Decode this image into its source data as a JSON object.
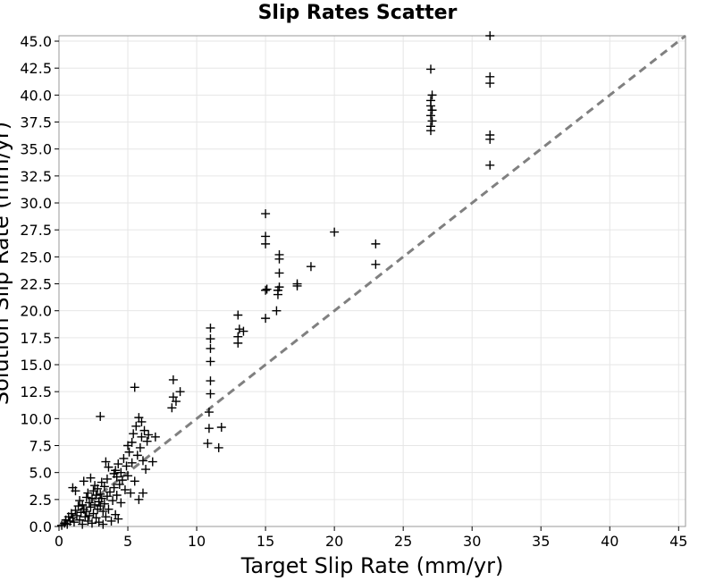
{
  "chart_data": {
    "type": "scatter",
    "title": "Slip Rates Scatter",
    "xlabel": "Target Slip Rate (mm/yr)",
    "ylabel": "Solution Slip Rate (mm/yr)",
    "xlim": [
      0,
      45.5
    ],
    "ylim": [
      0,
      45.5
    ],
    "x_ticks": [
      "0",
      "5",
      "10",
      "15",
      "20",
      "25",
      "30",
      "35",
      "40",
      "45"
    ],
    "y_ticks": [
      "0.0",
      "2.5",
      "5.0",
      "7.5",
      "10.0",
      "12.5",
      "15.0",
      "17.5",
      "20.0",
      "22.5",
      "25.0",
      "27.5",
      "30.0",
      "32.5",
      "35.0",
      "37.5",
      "40.0",
      "42.5",
      "45.0"
    ],
    "grid": true,
    "marker": "plus",
    "reference_line": {
      "style": "dashed",
      "color": "#808080",
      "x": [
        0,
        45.5
      ],
      "y": [
        0,
        45.5
      ]
    },
    "points": [
      [
        0.2,
        0.1
      ],
      [
        0.4,
        0.3
      ],
      [
        0.5,
        0.6
      ],
      [
        0.6,
        0.2
      ],
      [
        0.7,
        0.9
      ],
      [
        0.8,
        0.5
      ],
      [
        0.9,
        1.2
      ],
      [
        1.0,
        0.8
      ],
      [
        1.0,
        3.6
      ],
      [
        1.1,
        0.4
      ],
      [
        1.2,
        1.5
      ],
      [
        1.2,
        3.3
      ],
      [
        1.3,
        1.0
      ],
      [
        1.4,
        1.9
      ],
      [
        1.5,
        0.6
      ],
      [
        1.5,
        2.4
      ],
      [
        1.6,
        1.3
      ],
      [
        1.7,
        0.2
      ],
      [
        1.7,
        2.0
      ],
      [
        1.8,
        1.6
      ],
      [
        1.8,
        4.2
      ],
      [
        1.9,
        0.9
      ],
      [
        2.0,
        2.7
      ],
      [
        2.0,
        1.4
      ],
      [
        2.1,
        0.5
      ],
      [
        2.1,
        3.1
      ],
      [
        2.2,
        2.2
      ],
      [
        2.2,
        1.0
      ],
      [
        2.3,
        4.5
      ],
      [
        2.3,
        1.8
      ],
      [
        2.4,
        2.6
      ],
      [
        2.4,
        0.3
      ],
      [
        2.5,
        3.3
      ],
      [
        2.5,
        1.2
      ],
      [
        2.6,
        2.0
      ],
      [
        2.6,
        3.8
      ],
      [
        2.7,
        0.8
      ],
      [
        2.7,
        2.9
      ],
      [
        2.8,
        1.6
      ],
      [
        2.8,
        3.5
      ],
      [
        2.9,
        2.3
      ],
      [
        2.9,
        0.4
      ],
      [
        3.0,
        3.0
      ],
      [
        3.0,
        1.9
      ],
      [
        3.0,
        10.2
      ],
      [
        3.1,
        2.6
      ],
      [
        3.1,
        4.1
      ],
      [
        3.2,
        1.4
      ],
      [
        3.2,
        0.2
      ],
      [
        3.3,
        3.7
      ],
      [
        3.3,
        2.1
      ],
      [
        3.4,
        0.9
      ],
      [
        3.4,
        6.0
      ],
      [
        3.5,
        2.8
      ],
      [
        3.5,
        4.4
      ],
      [
        3.6,
        1.6
      ],
      [
        3.6,
        5.5
      ],
      [
        3.7,
        3.2
      ],
      [
        3.8,
        0.5
      ],
      [
        3.9,
        2.4
      ],
      [
        4.0,
        4.9
      ],
      [
        4.0,
        3.6
      ],
      [
        4.1,
        1.1
      ],
      [
        4.1,
        5.2
      ],
      [
        4.2,
        2.9
      ],
      [
        4.2,
        4.6
      ],
      [
        4.3,
        0.7
      ],
      [
        4.3,
        5.8
      ],
      [
        4.4,
        3.9
      ],
      [
        4.5,
        5.0
      ],
      [
        4.5,
        2.2
      ],
      [
        4.6,
        4.3
      ],
      [
        4.7,
        6.3
      ],
      [
        4.8,
        3.4
      ],
      [
        4.9,
        5.6
      ],
      [
        5.0,
        7.5
      ],
      [
        5.0,
        4.7
      ],
      [
        5.1,
        6.9
      ],
      [
        5.2,
        3.1
      ],
      [
        5.3,
        7.8
      ],
      [
        5.3,
        5.9
      ],
      [
        5.4,
        8.6
      ],
      [
        5.5,
        4.2
      ],
      [
        5.5,
        12.9
      ],
      [
        5.6,
        9.3
      ],
      [
        5.7,
        6.6
      ],
      [
        5.8,
        10.1
      ],
      [
        5.8,
        2.5
      ],
      [
        5.9,
        7.3
      ],
      [
        6.0,
        8.3
      ],
      [
        6.0,
        9.7
      ],
      [
        6.1,
        6.1
      ],
      [
        6.1,
        3.1
      ],
      [
        6.2,
        8.9
      ],
      [
        6.3,
        5.3
      ],
      [
        6.4,
        7.9
      ],
      [
        6.5,
        8.5
      ],
      [
        6.8,
        6.0
      ],
      [
        7.0,
        8.3
      ],
      [
        8.2,
        11.0
      ],
      [
        8.3,
        12.0
      ],
      [
        8.3,
        13.6
      ],
      [
        8.5,
        11.6
      ],
      [
        8.8,
        12.5
      ],
      [
        10.8,
        7.7
      ],
      [
        10.9,
        9.1
      ],
      [
        10.9,
        10.6
      ],
      [
        11.0,
        12.3
      ],
      [
        11.0,
        13.5
      ],
      [
        11.0,
        15.3
      ],
      [
        11.0,
        16.5
      ],
      [
        11.0,
        17.4
      ],
      [
        11.0,
        18.4
      ],
      [
        11.6,
        7.3
      ],
      [
        11.8,
        9.2
      ],
      [
        13.0,
        17.0
      ],
      [
        13.0,
        17.6
      ],
      [
        13.1,
        18.3
      ],
      [
        13.0,
        19.6
      ],
      [
        13.4,
        18.1
      ],
      [
        15.0,
        19.3
      ],
      [
        15.0,
        21.9
      ],
      [
        15.1,
        22.0
      ],
      [
        15.0,
        26.2
      ],
      [
        15.0,
        26.9
      ],
      [
        15.0,
        29.0
      ],
      [
        15.8,
        20.0
      ],
      [
        15.9,
        21.5
      ],
      [
        15.9,
        21.9
      ],
      [
        16.0,
        22.2
      ],
      [
        16.0,
        23.5
      ],
      [
        16.0,
        24.8
      ],
      [
        16.0,
        25.2
      ],
      [
        17.3,
        22.3
      ],
      [
        17.3,
        22.5
      ],
      [
        18.3,
        24.1
      ],
      [
        20.0,
        27.3
      ],
      [
        23.0,
        24.3
      ],
      [
        23.0,
        26.2
      ],
      [
        27.0,
        36.7
      ],
      [
        27.0,
        37.1
      ],
      [
        27.1,
        37.6
      ],
      [
        27.0,
        38.1
      ],
      [
        27.1,
        38.6
      ],
      [
        27.0,
        39.0
      ],
      [
        27.0,
        39.5
      ],
      [
        27.1,
        40.0
      ],
      [
        27.0,
        42.4
      ],
      [
        31.3,
        33.5
      ],
      [
        31.3,
        35.9
      ],
      [
        31.3,
        36.3
      ],
      [
        31.3,
        41.1
      ],
      [
        31.3,
        41.7
      ],
      [
        31.3,
        45.5
      ]
    ]
  }
}
